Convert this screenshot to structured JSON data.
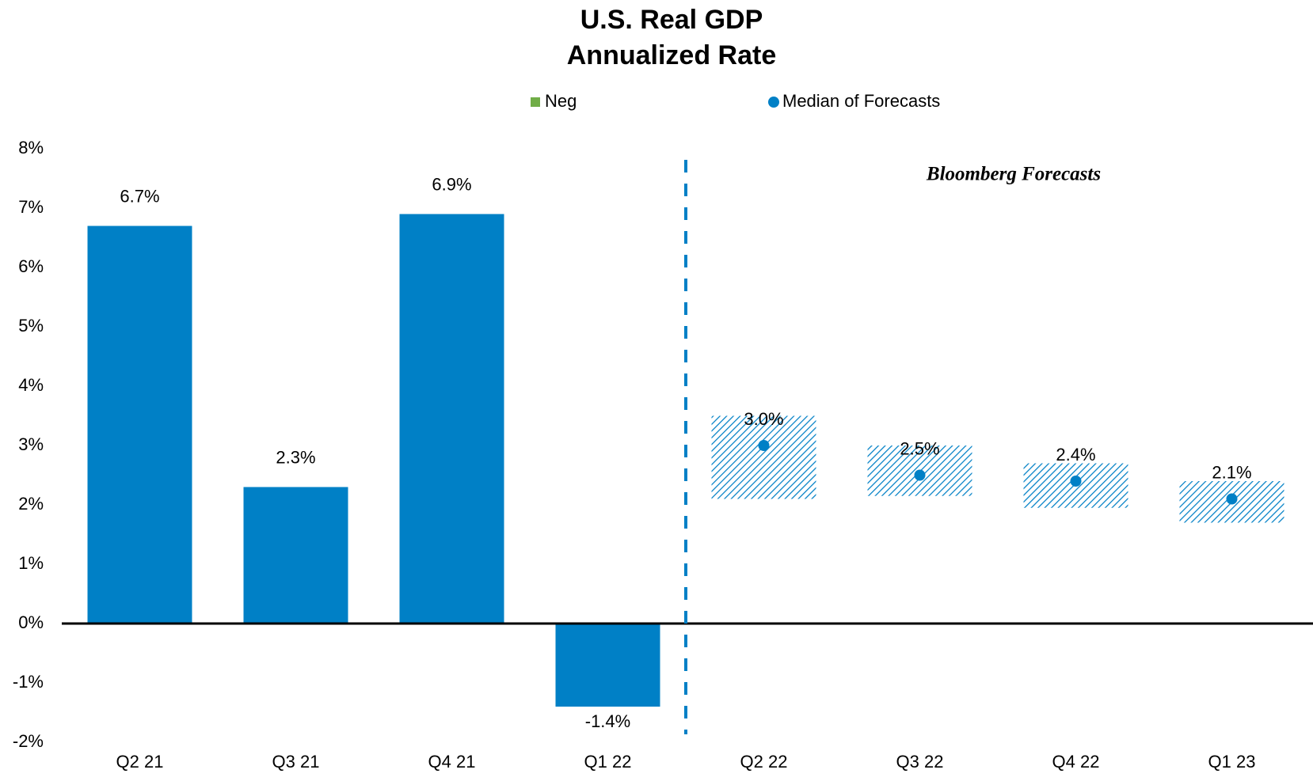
{
  "chart_data": {
    "type": "bar",
    "title": "U.S. Real GDP",
    "subtitle": "Annualized Rate",
    "annotation": "Bloomberg Forecasts",
    "categories": [
      "Q2 21",
      "Q3 21",
      "Q4 21",
      "Q1 22",
      "Q2 22",
      "Q3 22",
      "Q4 22",
      "Q1 23"
    ],
    "series": [
      {
        "color": "#0080c6",
        "values": [
          6.7,
          2.3,
          6.9,
          -1.4,
          null,
          null,
          null,
          null
        ],
        "value_labels": [
          "6.7%",
          "2.3%",
          "6.9%",
          "-1.4%",
          null,
          null,
          null,
          null
        ]
      },
      {
        "name": "Neg",
        "color": "#70ad47",
        "values": [
          null,
          null,
          null,
          null,
          null,
          null,
          null,
          null
        ]
      },
      {
        "name": "Median of Forecasts",
        "color": "#0080c6",
        "values": [
          null,
          null,
          null,
          null,
          3.0,
          2.5,
          2.4,
          2.1
        ],
        "value_labels": [
          null,
          null,
          null,
          null,
          "3.0%",
          "2.5%",
          "2.4%",
          "2.1%"
        ]
      }
    ],
    "forecast_range": {
      "color": "#0080c6",
      "low": [
        null,
        null,
        null,
        null,
        2.1,
        2.15,
        1.95,
        1.7
      ],
      "high": [
        null,
        null,
        null,
        null,
        3.5,
        3.0,
        2.7,
        2.4
      ]
    },
    "ylim": [
      -2,
      8
    ],
    "yticks": [
      {
        "value": -2,
        "label": "-2%"
      },
      {
        "value": -1,
        "label": "-1%"
      },
      {
        "value": 0,
        "label": "0%"
      },
      {
        "value": 1,
        "label": "1%"
      },
      {
        "value": 2,
        "label": "2%"
      },
      {
        "value": 3,
        "label": "3%"
      },
      {
        "value": 4,
        "label": "4%"
      },
      {
        "value": 5,
        "label": "5%"
      },
      {
        "value": 6,
        "label": "6%"
      },
      {
        "value": 7,
        "label": "7%"
      },
      {
        "value": 8,
        "label": "8%"
      }
    ]
  }
}
